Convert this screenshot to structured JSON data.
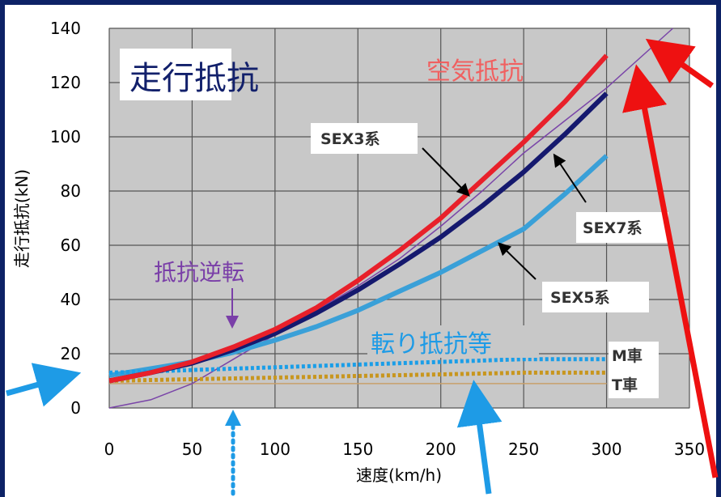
{
  "chart_data": {
    "type": "line",
    "title": "走行抵抗",
    "xlabel": "速度(km/h)",
    "ylabel": "走行抵抗(kN)",
    "xlim": [
      0,
      350
    ],
    "ylim": [
      0,
      140
    ],
    "x_ticks": [
      0,
      50,
      100,
      150,
      200,
      250,
      300,
      350
    ],
    "y_ticks": [
      0,
      20,
      40,
      60,
      80,
      100,
      120,
      140
    ],
    "grid": true,
    "x": [
      0,
      25,
      50,
      75,
      100,
      125,
      150,
      175,
      200,
      225,
      250,
      275,
      300
    ],
    "series": [
      {
        "name": "空気抵抗",
        "color": "#e8202a",
        "values": [
          10,
          13,
          17,
          22.5,
          29,
          37,
          47,
          58,
          70,
          84,
          98,
          113,
          130
        ]
      },
      {
        "name": "SEX3系",
        "color": "#15196e",
        "values": [
          10,
          13,
          16.5,
          21.5,
          27.5,
          35,
          43.5,
          53,
          63,
          74.5,
          87,
          101,
          116
        ]
      },
      {
        "name": "SEX7系",
        "color": "#7a45a8",
        "values": [
          0,
          3,
          9,
          18,
          27,
          36,
          45,
          55,
          67,
          80,
          94,
          106,
          118
        ]
      },
      {
        "name": "SEX5系",
        "color": "#3aa0d8",
        "values": [
          12,
          14.5,
          17,
          20.5,
          25,
          30,
          36,
          43,
          50,
          58,
          66,
          79,
          93
        ]
      },
      {
        "name": "M車",
        "color": "#1a9ee8",
        "values": [
          13,
          13.5,
          14,
          14.5,
          15,
          15.5,
          16,
          16.5,
          17,
          17.5,
          18,
          18,
          18
        ]
      },
      {
        "name": "T車",
        "color": "#c8961e",
        "values": [
          10,
          10.3,
          10.6,
          10.9,
          11.2,
          11.5,
          11.8,
          12.1,
          12.4,
          12.7,
          13,
          13,
          13
        ]
      },
      {
        "name": "",
        "color": "#c8a06a",
        "values": [
          9,
          9,
          9,
          9,
          9,
          9,
          9,
          9,
          9,
          9,
          9,
          9,
          9
        ]
      }
    ],
    "annotations": {
      "air": "空気抵抗",
      "sex3": "SEX3系",
      "sex7": "SEX7系",
      "sex5": "SEX5系",
      "reversal": "抵抗逆転",
      "rolling": "転り抵抗等",
      "m_car": "M車",
      "t_car": "T車"
    }
  },
  "colors": {
    "background": "#0d2266",
    "plot_background": "#c8c8c8",
    "grid": "#555555",
    "title": "#12206b",
    "red_arrow": "#ee1111",
    "blue_arrow": "#1e9be6",
    "reversal_text": "#7a3fa8",
    "rolling_text": "#1e9be6"
  }
}
